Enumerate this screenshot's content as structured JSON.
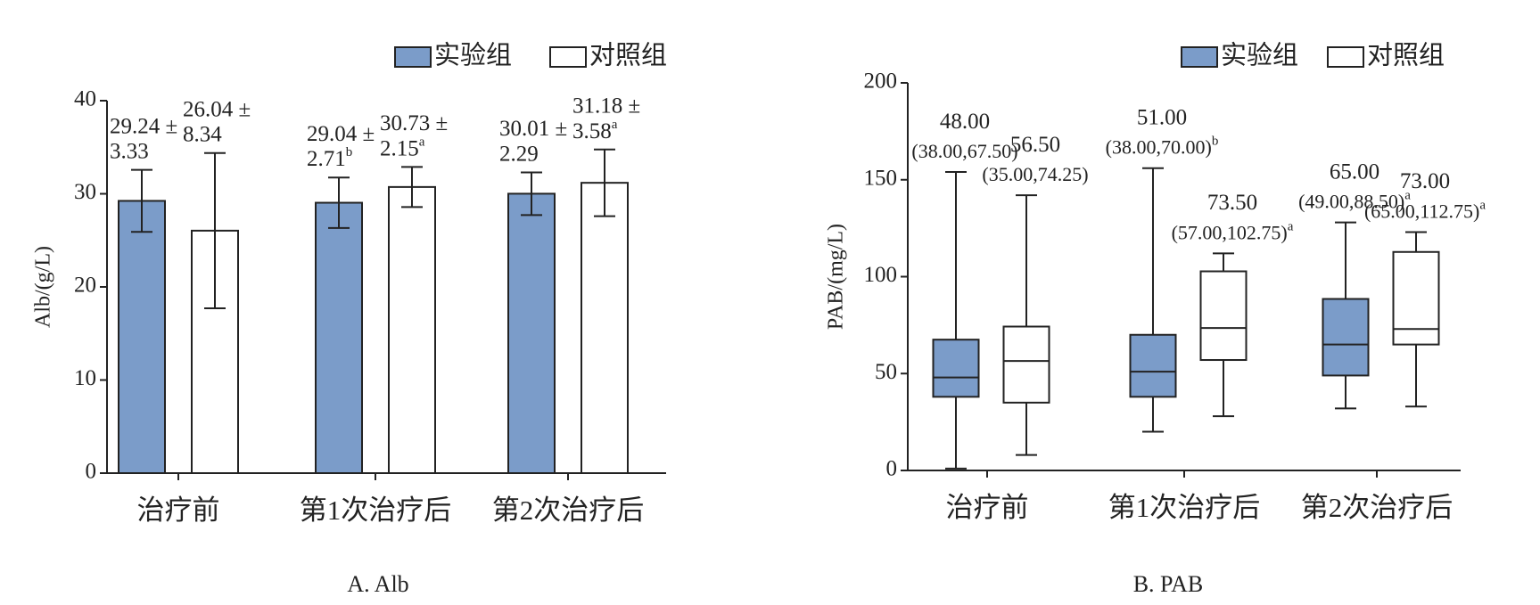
{
  "chart_data": [
    {
      "type": "bar",
      "ylabel": "Alb/(g/L)",
      "caption": "A. Alb",
      "categories": [
        "治疗前",
        "第1次治疗后",
        "第2次治疗后"
      ],
      "series": [
        {
          "name": "实验组",
          "color": "#7b9cc9",
          "values": [
            29.24,
            29.04,
            30.01
          ],
          "value_labels": [
            "29.24 ±",
            "29.04 ±",
            "30.01 ±"
          ],
          "errors": [
            3.33,
            2.71,
            2.29
          ],
          "notes": [
            null,
            "b",
            null
          ]
        },
        {
          "name": "对照组",
          "color": "#ffffff",
          "values": [
            26.04,
            30.73,
            31.18
          ],
          "value_labels": [
            "26.04 ±",
            "30.73 ±",
            "31.18 ±"
          ],
          "errors": [
            8.34,
            2.15,
            3.58
          ],
          "notes": [
            null,
            "a",
            "a"
          ]
        }
      ],
      "ylim": [
        0,
        40
      ],
      "yticks": [
        0,
        10,
        20,
        30,
        40
      ]
    },
    {
      "type": "box",
      "ylabel": "PAB/(mg/L)",
      "caption": "B. PAB",
      "categories": [
        "治疗前",
        "第1次治疗后",
        "第2次治疗后"
      ],
      "series": [
        {
          "name": "实验组",
          "color": "#7b9cc9",
          "low": [
            1,
            20,
            32
          ],
          "q1": [
            38,
            38,
            49
          ],
          "median": [
            48,
            51,
            65
          ],
          "q3": [
            67.5,
            70,
            88.5
          ],
          "high": [
            154,
            156,
            128
          ],
          "median_labels": [
            "48.00",
            "51.00",
            "65.00"
          ],
          "iqr_labels": [
            "(38.00,67.50)",
            "(38.00,70.00)",
            "(49.00,88.50)"
          ],
          "notes": [
            null,
            "b",
            "a"
          ]
        },
        {
          "name": "对照组",
          "color": "#ffffff",
          "low": [
            8,
            28,
            33
          ],
          "q1": [
            35,
            57,
            65
          ],
          "median": [
            56.5,
            73.5,
            73
          ],
          "q3": [
            74.25,
            102.75,
            112.75
          ],
          "high": [
            142,
            112,
            123
          ],
          "median_labels": [
            "56.50",
            "73.50",
            "73.00"
          ],
          "iqr_labels": [
            "(35.00,74.25)",
            "(57.00,102.75)",
            "(65.00,112.75)"
          ],
          "notes": [
            null,
            "a",
            "a"
          ]
        }
      ],
      "ylim": [
        0,
        200
      ],
      "yticks": [
        0,
        50,
        100,
        150,
        200
      ]
    }
  ]
}
